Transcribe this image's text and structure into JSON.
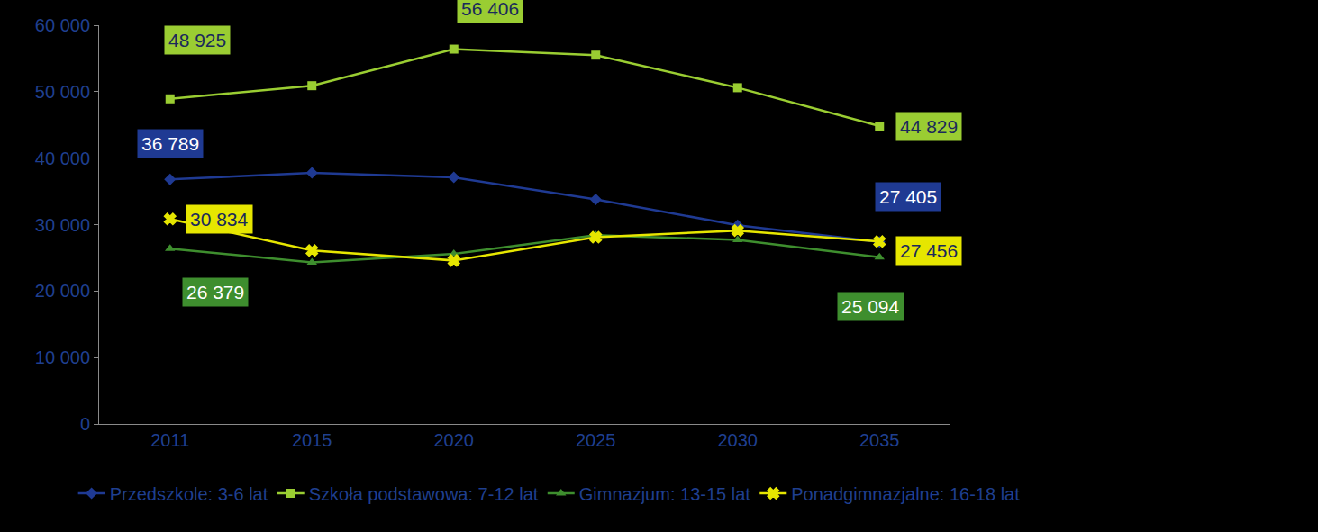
{
  "chart_data": {
    "type": "line",
    "categories": [
      "2011",
      "2015",
      "2020",
      "2025",
      "2030",
      "2035"
    ],
    "ylim": [
      0,
      60000
    ],
    "yticks": [
      0,
      {
        "value": 10000,
        "label": "10 000"
      },
      {
        "value": 20000,
        "label": "20 000"
      },
      {
        "value": 30000,
        "label": "30 000"
      },
      {
        "value": 40000,
        "label": "40 000"
      },
      {
        "value": 50000,
        "label": "50 000"
      },
      {
        "value": 60000,
        "label": "60 000"
      }
    ],
    "grid": false,
    "legend": "bottom",
    "data_labels": true,
    "series": [
      {
        "name": "Przedszkole: 3-6 lat",
        "color": "#1f3a93",
        "marker": "diamond",
        "values": [
          36789,
          37800,
          37100,
          33800,
          29900,
          27405
        ],
        "value_labels": [
          "36 789",
          null,
          null,
          null,
          null,
          "27 405"
        ]
      },
      {
        "name": "Szkoła podstawowa: 7-12 lat",
        "color": "#9acd32",
        "marker": "square",
        "values": [
          48925,
          50900,
          56406,
          55500,
          50600,
          44829
        ],
        "value_labels": [
          "48 925",
          null,
          "56 406",
          null,
          null,
          "44 829"
        ]
      },
      {
        "name": "Gimnazjum: 13-15 lat",
        "color": "#3e8e2e",
        "marker": "triangle-up",
        "values": [
          26379,
          24300,
          25600,
          28400,
          27700,
          25094
        ],
        "value_labels": [
          "26 379",
          null,
          null,
          null,
          null,
          "25 094"
        ]
      },
      {
        "name": "Ponadgimnazjalne: 16-18 lat",
        "color": "#e6e600",
        "marker": "x",
        "values": [
          30834,
          26100,
          24600,
          28100,
          29100,
          27456
        ],
        "value_labels": [
          "30 834",
          null,
          null,
          null,
          null,
          "27 456"
        ]
      }
    ]
  }
}
